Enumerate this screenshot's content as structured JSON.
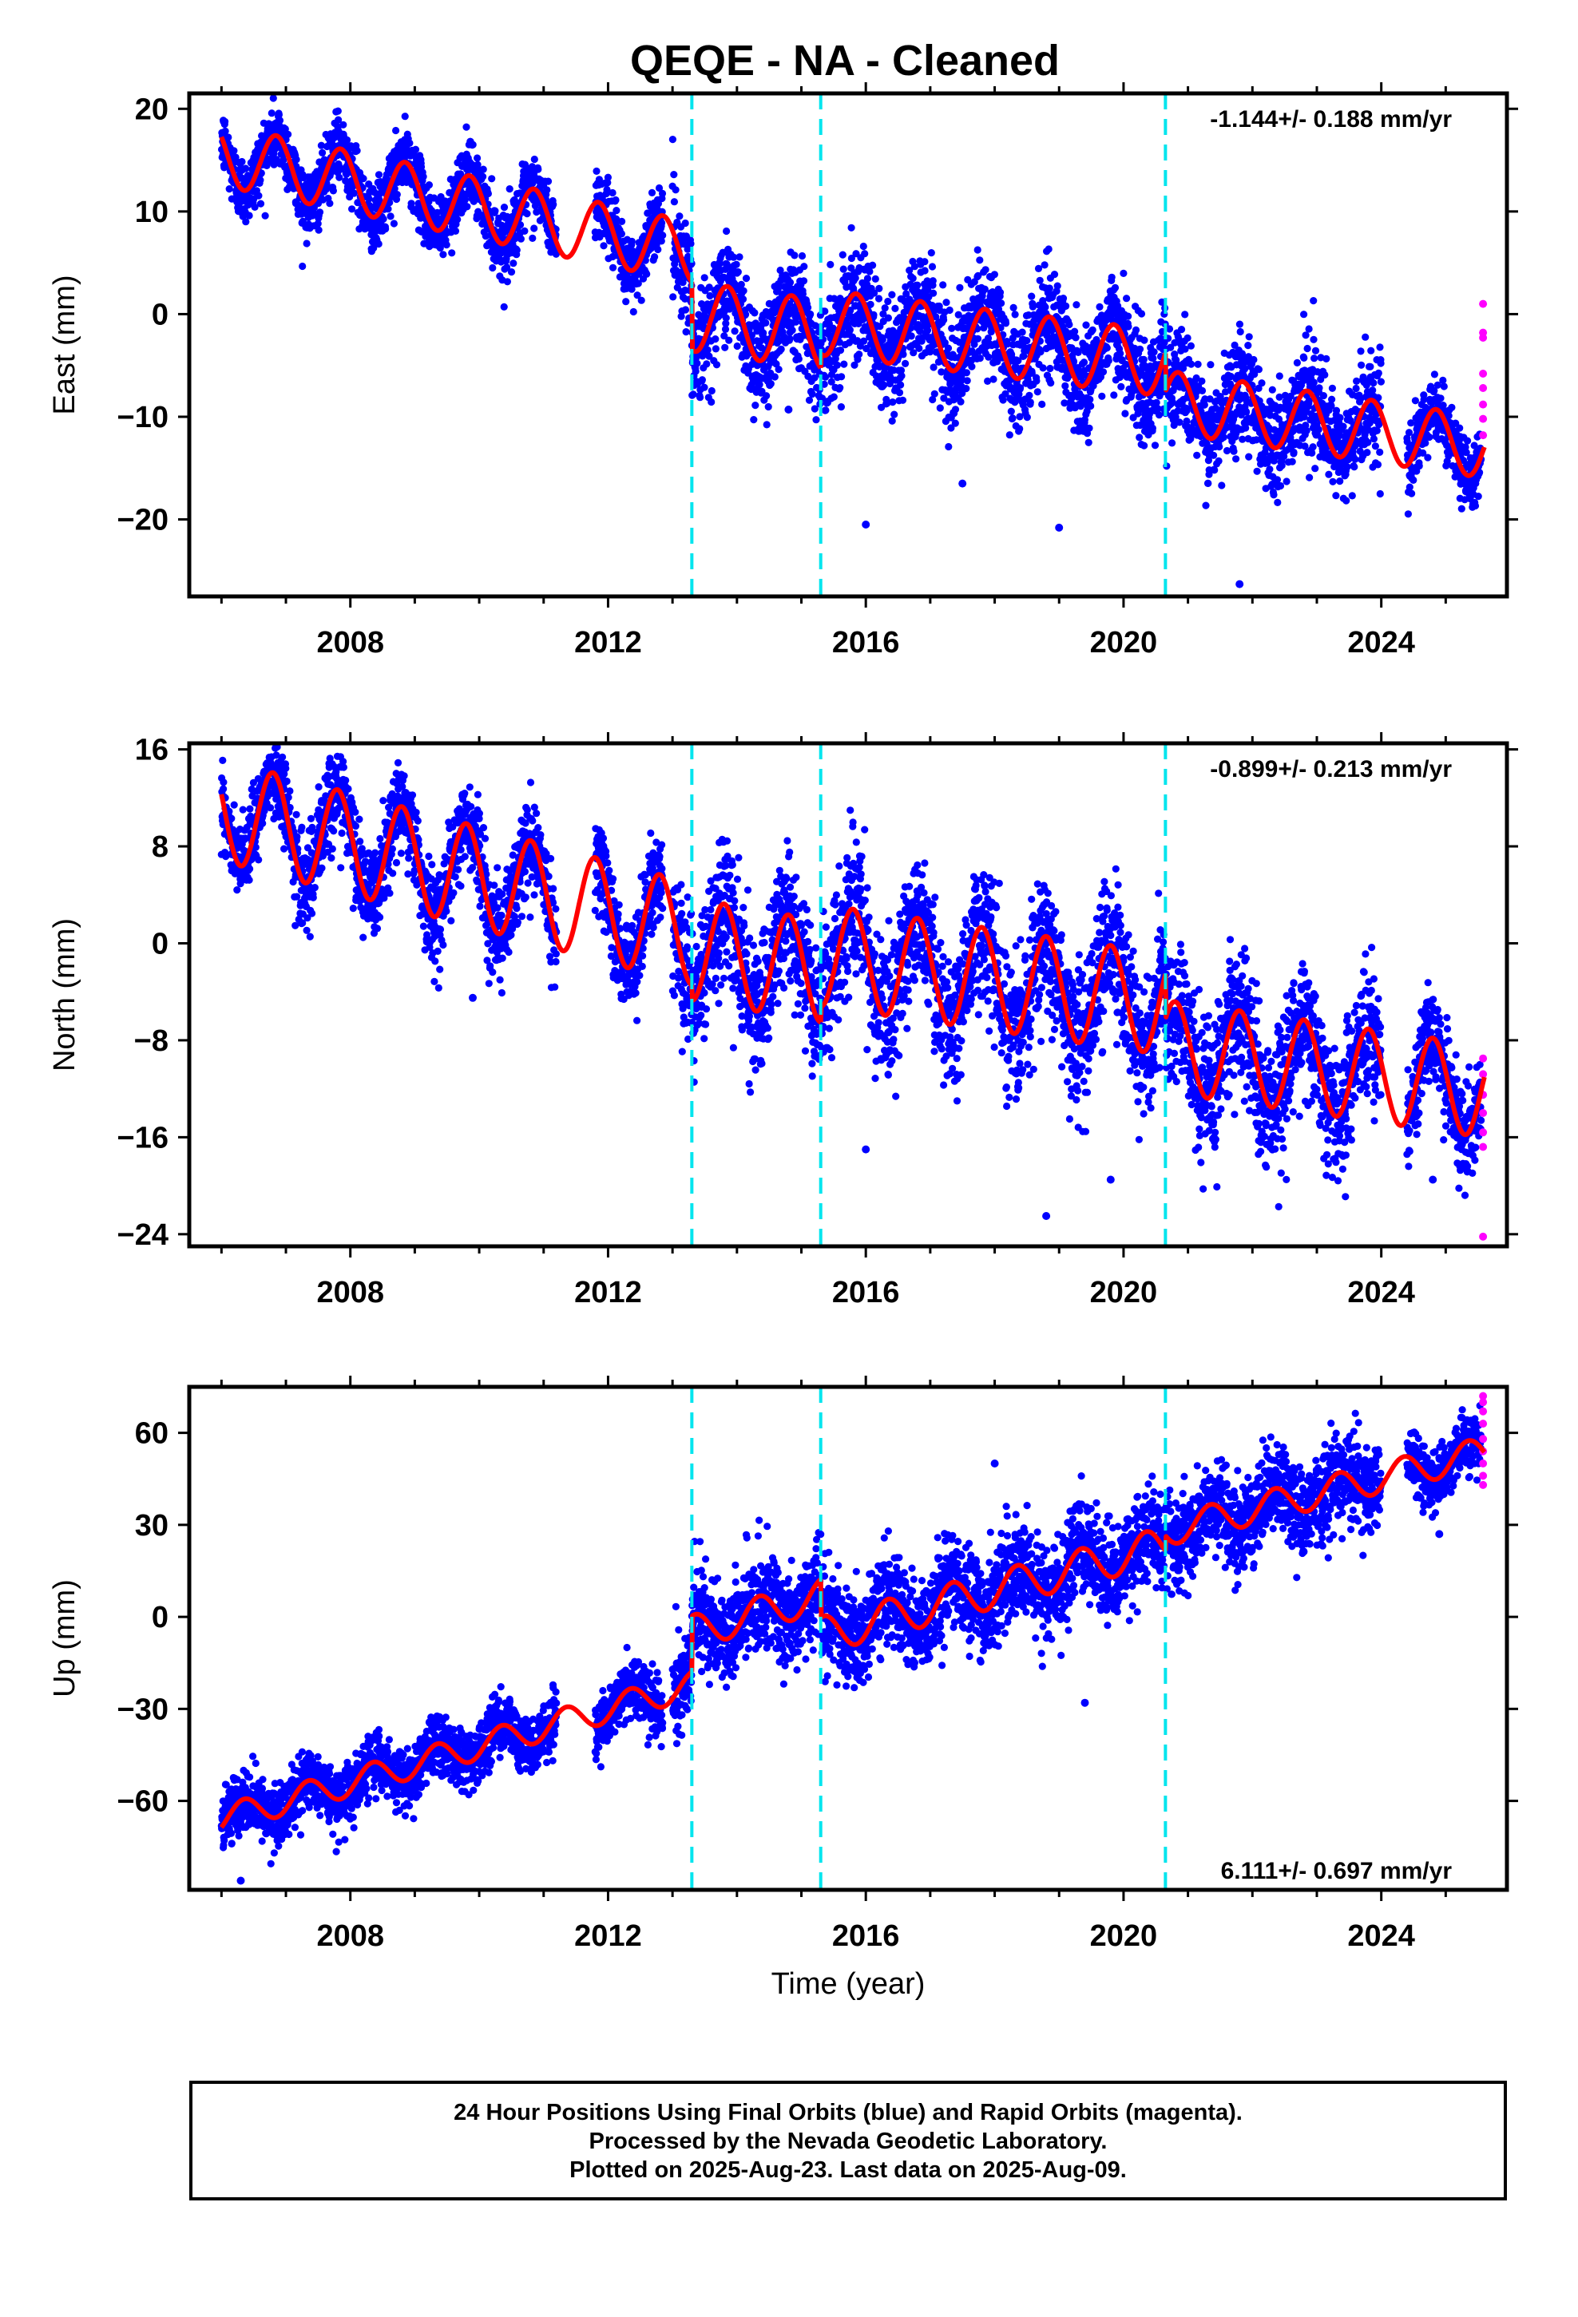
{
  "title": "QEQE  - NA - Cleaned",
  "colors": {
    "final_orbits": "#0000ff",
    "rapid_orbits": "#ff00ff",
    "model_fit": "#ff0000",
    "offsets": "#00e5ee",
    "frame": "#000000"
  },
  "footer": {
    "line1": "24 Hour Positions Using Final Orbits (blue) and Rapid Orbits (magenta).",
    "line2": "Processed by the Nevada Geodetic Laboratory.",
    "line3": "Plotted on 2025-Aug-23. Last data on 2025-Aug-09."
  },
  "chart_data": [
    {
      "type": "scatter",
      "component": "east",
      "ylabel": "East (mm)",
      "xlabel": "",
      "xlim": [
        2005.5,
        2025.95
      ],
      "ylim": [
        -27.5,
        21.5
      ],
      "x_ticks": [
        2008,
        2012,
        2016,
        2020,
        2024
      ],
      "y_ticks": [
        20,
        10,
        0,
        -10,
        -20
      ],
      "y_tick_labels": [
        "20",
        "10",
        "0",
        "−10",
        "−20"
      ],
      "rate_label": "-1.144+/- 0.188 mm/yr",
      "rate_position": "top-right",
      "offset_epochs": [
        2013.3,
        2015.3,
        2020.65
      ],
      "model": {
        "segments": [
          {
            "start": 2006.0,
            "end": 2013.3,
            "base": 15.5,
            "slope": -1.3,
            "amp": 3.0,
            "phase": 0.6
          },
          {
            "start": 2013.3,
            "end": 2015.3,
            "base": -0.2,
            "slope": -0.9,
            "amp": 3.4,
            "phase": 0.6
          },
          {
            "start": 2015.3,
            "end": 2020.65,
            "base": -0.8,
            "slope": -0.75,
            "amp": 3.2,
            "phase": 0.6
          },
          {
            "start": 2020.65,
            "end": 2025.6,
            "base": -8.5,
            "slope": -0.9,
            "amp": 3.0,
            "phase": 0.6
          }
        ]
      },
      "data_spans": [
        [
          2006.0,
          2011.2
        ],
        [
          2011.8,
          2012.85
        ],
        [
          2013.0,
          2024.0
        ],
        [
          2024.4,
          2025.55
        ]
      ],
      "noise_mm": [
        1.6,
        1.6,
        2.6,
        1.6
      ],
      "rapid": {
        "x": 2025.58,
        "values": [
          1.0,
          -1.8,
          -2.3,
          -5.8,
          -7.2,
          -8.8,
          -10.2,
          -11.8
        ]
      },
      "outliers": [
        [
          2016.0,
          -20.5
        ],
        [
          2019.0,
          -20.8
        ],
        [
          2021.8,
          -26.3
        ],
        [
          2017.5,
          -16.5
        ],
        [
          2014.8,
          -9.3
        ]
      ]
    },
    {
      "type": "scatter",
      "component": "north",
      "ylabel": "North (mm)",
      "xlabel": "",
      "xlim": [
        2005.5,
        2025.95
      ],
      "ylim": [
        -25,
        16.5
      ],
      "x_ticks": [
        2008,
        2012,
        2016,
        2020,
        2024
      ],
      "y_ticks": [
        16,
        8,
        0,
        -8,
        -16,
        -24
      ],
      "y_tick_labels": [
        "16",
        "8",
        "0",
        "−8",
        "−16",
        "−24"
      ],
      "rate_label": "-0.899+/- 0.213 mm/yr",
      "rate_position": "top-right",
      "offset_epochs": [
        2013.3,
        2015.3,
        2020.65
      ],
      "model": {
        "segments": [
          {
            "start": 2006.0,
            "end": 2013.3,
            "base": 11.0,
            "slope": -1.4,
            "amp": 4.2,
            "phase": 0.55
          },
          {
            "start": 2013.3,
            "end": 2015.3,
            "base": -0.5,
            "slope": -0.9,
            "amp": 4.2,
            "phase": 0.55
          },
          {
            "start": 2015.3,
            "end": 2020.65,
            "base": -1.0,
            "slope": -0.75,
            "amp": 4.2,
            "phase": 0.55
          },
          {
            "start": 2020.65,
            "end": 2025.6,
            "base": -8.5,
            "slope": -0.75,
            "amp": 3.8,
            "phase": 0.55
          }
        ]
      },
      "data_spans": [
        [
          2006.0,
          2011.2
        ],
        [
          2011.8,
          2012.85
        ],
        [
          2013.0,
          2024.0
        ],
        [
          2024.4,
          2025.55
        ]
      ],
      "noise_mm": [
        1.8,
        1.8,
        2.8,
        1.8
      ],
      "rapid": {
        "x": 2025.58,
        "values": [
          -9.5,
          -10.8,
          -12.5,
          -14.0,
          -15.6,
          -16.8,
          -24.2
        ]
      },
      "outliers": [
        [
          2009.9,
          -4.5
        ],
        [
          2018.8,
          -22.5
        ],
        [
          2019.8,
          -19.5
        ],
        [
          2016.0,
          -17.0
        ],
        [
          2024.8,
          -19.5
        ]
      ]
    },
    {
      "type": "scatter",
      "component": "up",
      "ylabel": "Up (mm)",
      "xlabel": "Time (year)",
      "xlim": [
        2005.5,
        2025.95
      ],
      "ylim": [
        -89,
        75
      ],
      "x_ticks": [
        2008,
        2012,
        2016,
        2020,
        2024
      ],
      "y_ticks": [
        60,
        30,
        0,
        -30,
        -60
      ],
      "y_tick_labels": [
        "60",
        "30",
        "0",
        "−30",
        "−60"
      ],
      "rate_label": "6.111+/- 0.697 mm/yr",
      "rate_position": "bottom-right",
      "offset_epochs": [
        2013.3,
        2015.3,
        2020.65
      ],
      "model": {
        "segments": [
          {
            "start": 2006.0,
            "end": 2013.3,
            "base": -66.0,
            "slope": 6.0,
            "amp": 4.5,
            "phase": 0.1
          },
          {
            "start": 2013.3,
            "end": 2015.3,
            "base": -5.0,
            "slope": 6.0,
            "amp": 5.5,
            "phase": 0.1
          },
          {
            "start": 2015.3,
            "end": 2020.65,
            "base": -6.0,
            "slope": 5.5,
            "amp": 6.0,
            "phase": 0.1
          },
          {
            "start": 2020.65,
            "end": 2025.6,
            "base": 28.0,
            "slope": 5.2,
            "amp": 5.0,
            "phase": 0.1
          }
        ]
      },
      "data_spans": [
        [
          2006.0,
          2011.2
        ],
        [
          2011.8,
          2012.85
        ],
        [
          2013.0,
          2024.0
        ],
        [
          2024.4,
          2025.55
        ]
      ],
      "noise_mm": [
        5.0,
        5.0,
        7.5,
        5.0
      ],
      "rapid": {
        "x": 2025.58,
        "values": [
          72,
          70,
          67,
          63,
          58,
          54,
          50,
          46,
          43
        ]
      },
      "outliers": [
        [
          2018.0,
          50.0
        ],
        [
          2019.4,
          -28.0
        ],
        [
          2006.3,
          -86.0
        ],
        [
          2024.9,
          27.0
        ]
      ]
    }
  ]
}
